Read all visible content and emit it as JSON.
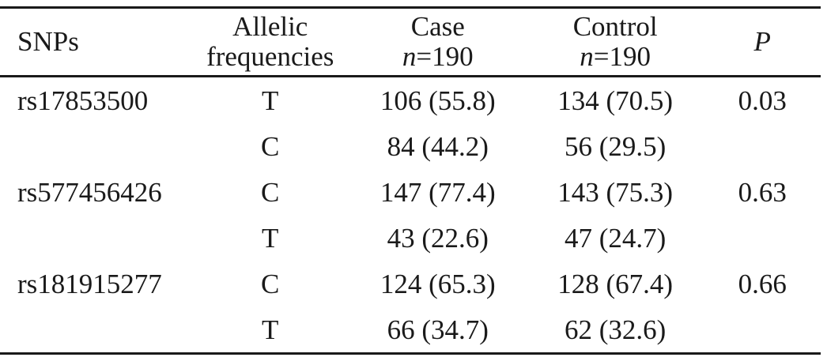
{
  "table": {
    "headers": {
      "snps": "SNPs",
      "allelic_line1": "Allelic",
      "allelic_line2": "frequencies",
      "case_line1": "Case",
      "case_n_var": "n",
      "case_n_val": "=190",
      "control_line1": "Control",
      "control_n_var": "n",
      "control_n_val": "=190",
      "p": "P"
    },
    "rows": [
      {
        "snp": "rs17853500",
        "allele": "T",
        "case": "106 (55.8)",
        "control": "134 (70.5)",
        "p": "0.03"
      },
      {
        "snp": "",
        "allele": "C",
        "case": "84 (44.2)",
        "control": "56 (29.5)",
        "p": ""
      },
      {
        "snp": "rs577456426",
        "allele": "C",
        "case": "147 (77.4)",
        "control": "143 (75.3)",
        "p": "0.63"
      },
      {
        "snp": "",
        "allele": "T",
        "case": "43 (22.6)",
        "control": "47 (24.7)",
        "p": ""
      },
      {
        "snp": "rs181915277",
        "allele": "C",
        "case": "124 (65.3)",
        "control": "128 (67.4)",
        "p": "0.66"
      },
      {
        "snp": "",
        "allele": "T",
        "case": "66 (34.7)",
        "control": "62 (32.6)",
        "p": ""
      }
    ]
  }
}
